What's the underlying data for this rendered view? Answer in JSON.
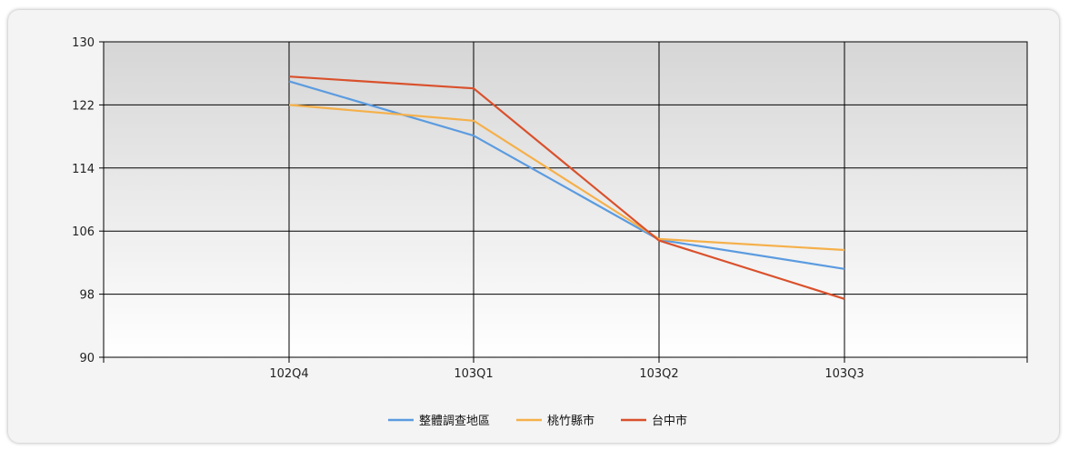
{
  "chart_data": {
    "type": "line",
    "title": "",
    "xlabel": "",
    "ylabel": "",
    "categories": [
      "102Q4",
      "103Q1",
      "103Q2",
      "103Q3"
    ],
    "ylim": [
      90,
      130
    ],
    "yticks": [
      "130",
      "122",
      "114",
      "106",
      "98",
      "90"
    ],
    "grid": true,
    "legend_position": "bottom",
    "series": [
      {
        "name": "整體調查地區",
        "color": "#5b9be0",
        "values": [
          125.0,
          118.1,
          104.9,
          101.2
        ]
      },
      {
        "name": "桃竹縣市",
        "color": "#f5b04a",
        "values": [
          122.0,
          120.0,
          105.0,
          103.6
        ]
      },
      {
        "name": "台中市",
        "color": "#d9512c",
        "values": [
          125.6,
          124.1,
          104.8,
          97.4
        ]
      }
    ]
  }
}
